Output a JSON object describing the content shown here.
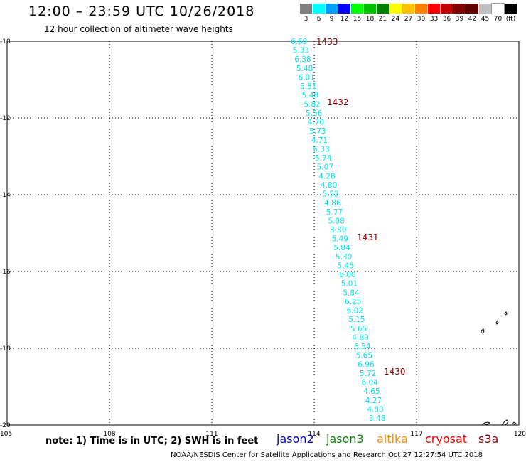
{
  "header": {
    "title": "12:00 – 23:59 UTC 10/26/2018",
    "subtitle": "12 hour collection of altimeter wave heights"
  },
  "legend": {
    "colors": [
      "#808080",
      "#00ffff",
      "#00a0ff",
      "#0000ff",
      "#00ff00",
      "#00c000",
      "#008000",
      "#ffff00",
      "#ffc000",
      "#ff8000",
      "#ff0000",
      "#c00000",
      "#800000",
      "#600000",
      "#c0c0c0",
      "#ffffff",
      "#000000"
    ],
    "labels": [
      "3",
      "6",
      "9",
      "12",
      "15",
      "18",
      "21",
      "24",
      "27",
      "30",
      "33",
      "36",
      "39",
      "42",
      "45",
      "70",
      "(ft)"
    ]
  },
  "map": {
    "lon_range": [
      105,
      120
    ],
    "lat_range": [
      -20,
      -10
    ],
    "x_ticks": [
      "105",
      "108",
      "111",
      "114",
      "117",
      "120"
    ],
    "y_ticks": [
      "-10",
      "-12",
      "-14",
      "-16",
      "-18",
      "-20"
    ],
    "track_color": "#00e5ee",
    "time_color": "#8b0000",
    "swh_values": [
      "6.69",
      "5.33",
      "6.38",
      "5.48",
      "6.01",
      "5.81",
      "5.48",
      "5.82",
      "5.56",
      "4.70",
      "5.73",
      "4.71",
      "6.33",
      "5.74",
      "5.07",
      "4.28",
      "4.80",
      "5.52",
      "4.86",
      "5.77",
      "5.08",
      "3.80",
      "5.49",
      "5.84",
      "5.30",
      "5.45",
      "6.00",
      "5.01",
      "5.84",
      "6.25",
      "6.02",
      "5.15",
      "5.65",
      "4.89",
      "6.54",
      "5.65",
      "6.96",
      "5.72",
      "6.04",
      "4.65",
      "4.27",
      "4.83",
      "3.48"
    ],
    "time_labels": [
      "1433",
      "1432",
      "1431",
      "1430"
    ]
  },
  "footer": {
    "note": "note:  1) Time is in UTC;  2) SWH is in feet",
    "satellites": [
      {
        "name": "jason2",
        "color": "#0000cd"
      },
      {
        "name": "jason3",
        "color": "#008b00"
      },
      {
        "name": "altika",
        "color": "#ff8c00"
      },
      {
        "name": "cryosat",
        "color": "#ff0000"
      },
      {
        "name": "s3a",
        "color": "#8b0000"
      }
    ],
    "credit": "NOAA/NESDIS Center for Satellite Applications and Research    Oct 27 12:27:54 UTC 2018"
  }
}
